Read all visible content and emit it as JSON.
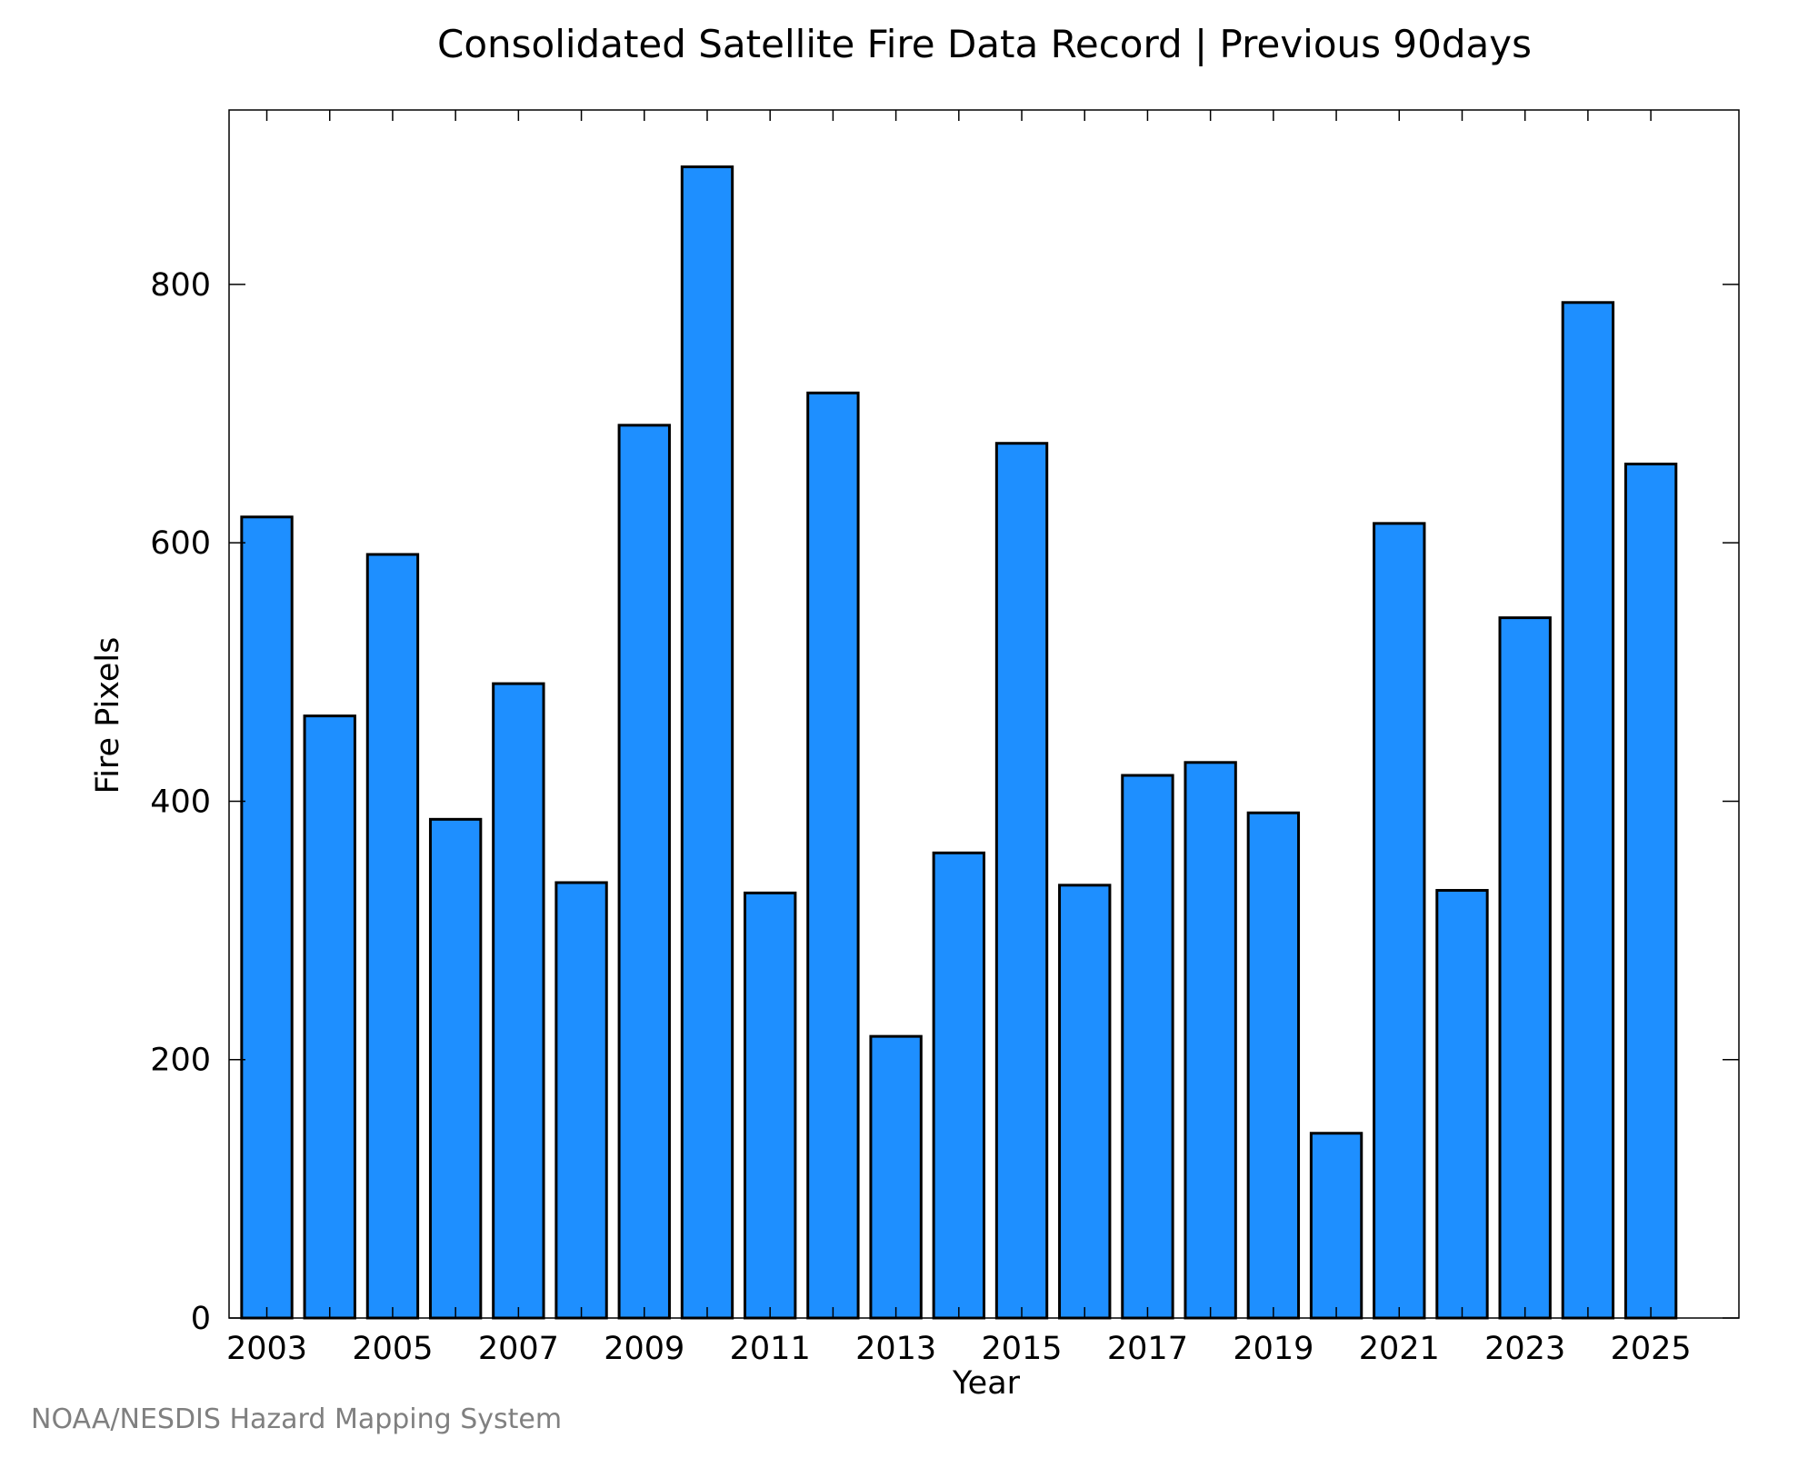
{
  "credit": "NOAA/NESDIS Hazard Mapping System",
  "colors": {
    "bar_fill": "#1e8fff",
    "bar_stroke": "#000000",
    "axis": "#000000",
    "credit_text": "#808080"
  },
  "chart_data": {
    "type": "bar",
    "title": "Consolidated Satellite Fire Data Record | Previous 90days",
    "xlabel": "Year",
    "ylabel": "Fire Pixels",
    "x": [
      2003,
      2004,
      2005,
      2006,
      2007,
      2008,
      2009,
      2010,
      2011,
      2012,
      2013,
      2014,
      2015,
      2016,
      2017,
      2018,
      2019,
      2020,
      2021,
      2022,
      2023,
      2024,
      2025
    ],
    "values": [
      620,
      466,
      591,
      386,
      491,
      337,
      691,
      891,
      329,
      716,
      218,
      360,
      677,
      335,
      420,
      430,
      391,
      143,
      615,
      331,
      542,
      786,
      661
    ],
    "x_ticks": [
      "2003",
      "2005",
      "2007",
      "2009",
      "2011",
      "2013",
      "2015",
      "2017",
      "2019",
      "2021",
      "2023",
      "2025"
    ],
    "y_ticks": [
      0,
      200,
      400,
      600,
      800
    ],
    "ylim": [
      0,
      935
    ],
    "xlim": [
      2002.4,
      2026.4
    ],
    "grid": false,
    "legend": "none"
  }
}
